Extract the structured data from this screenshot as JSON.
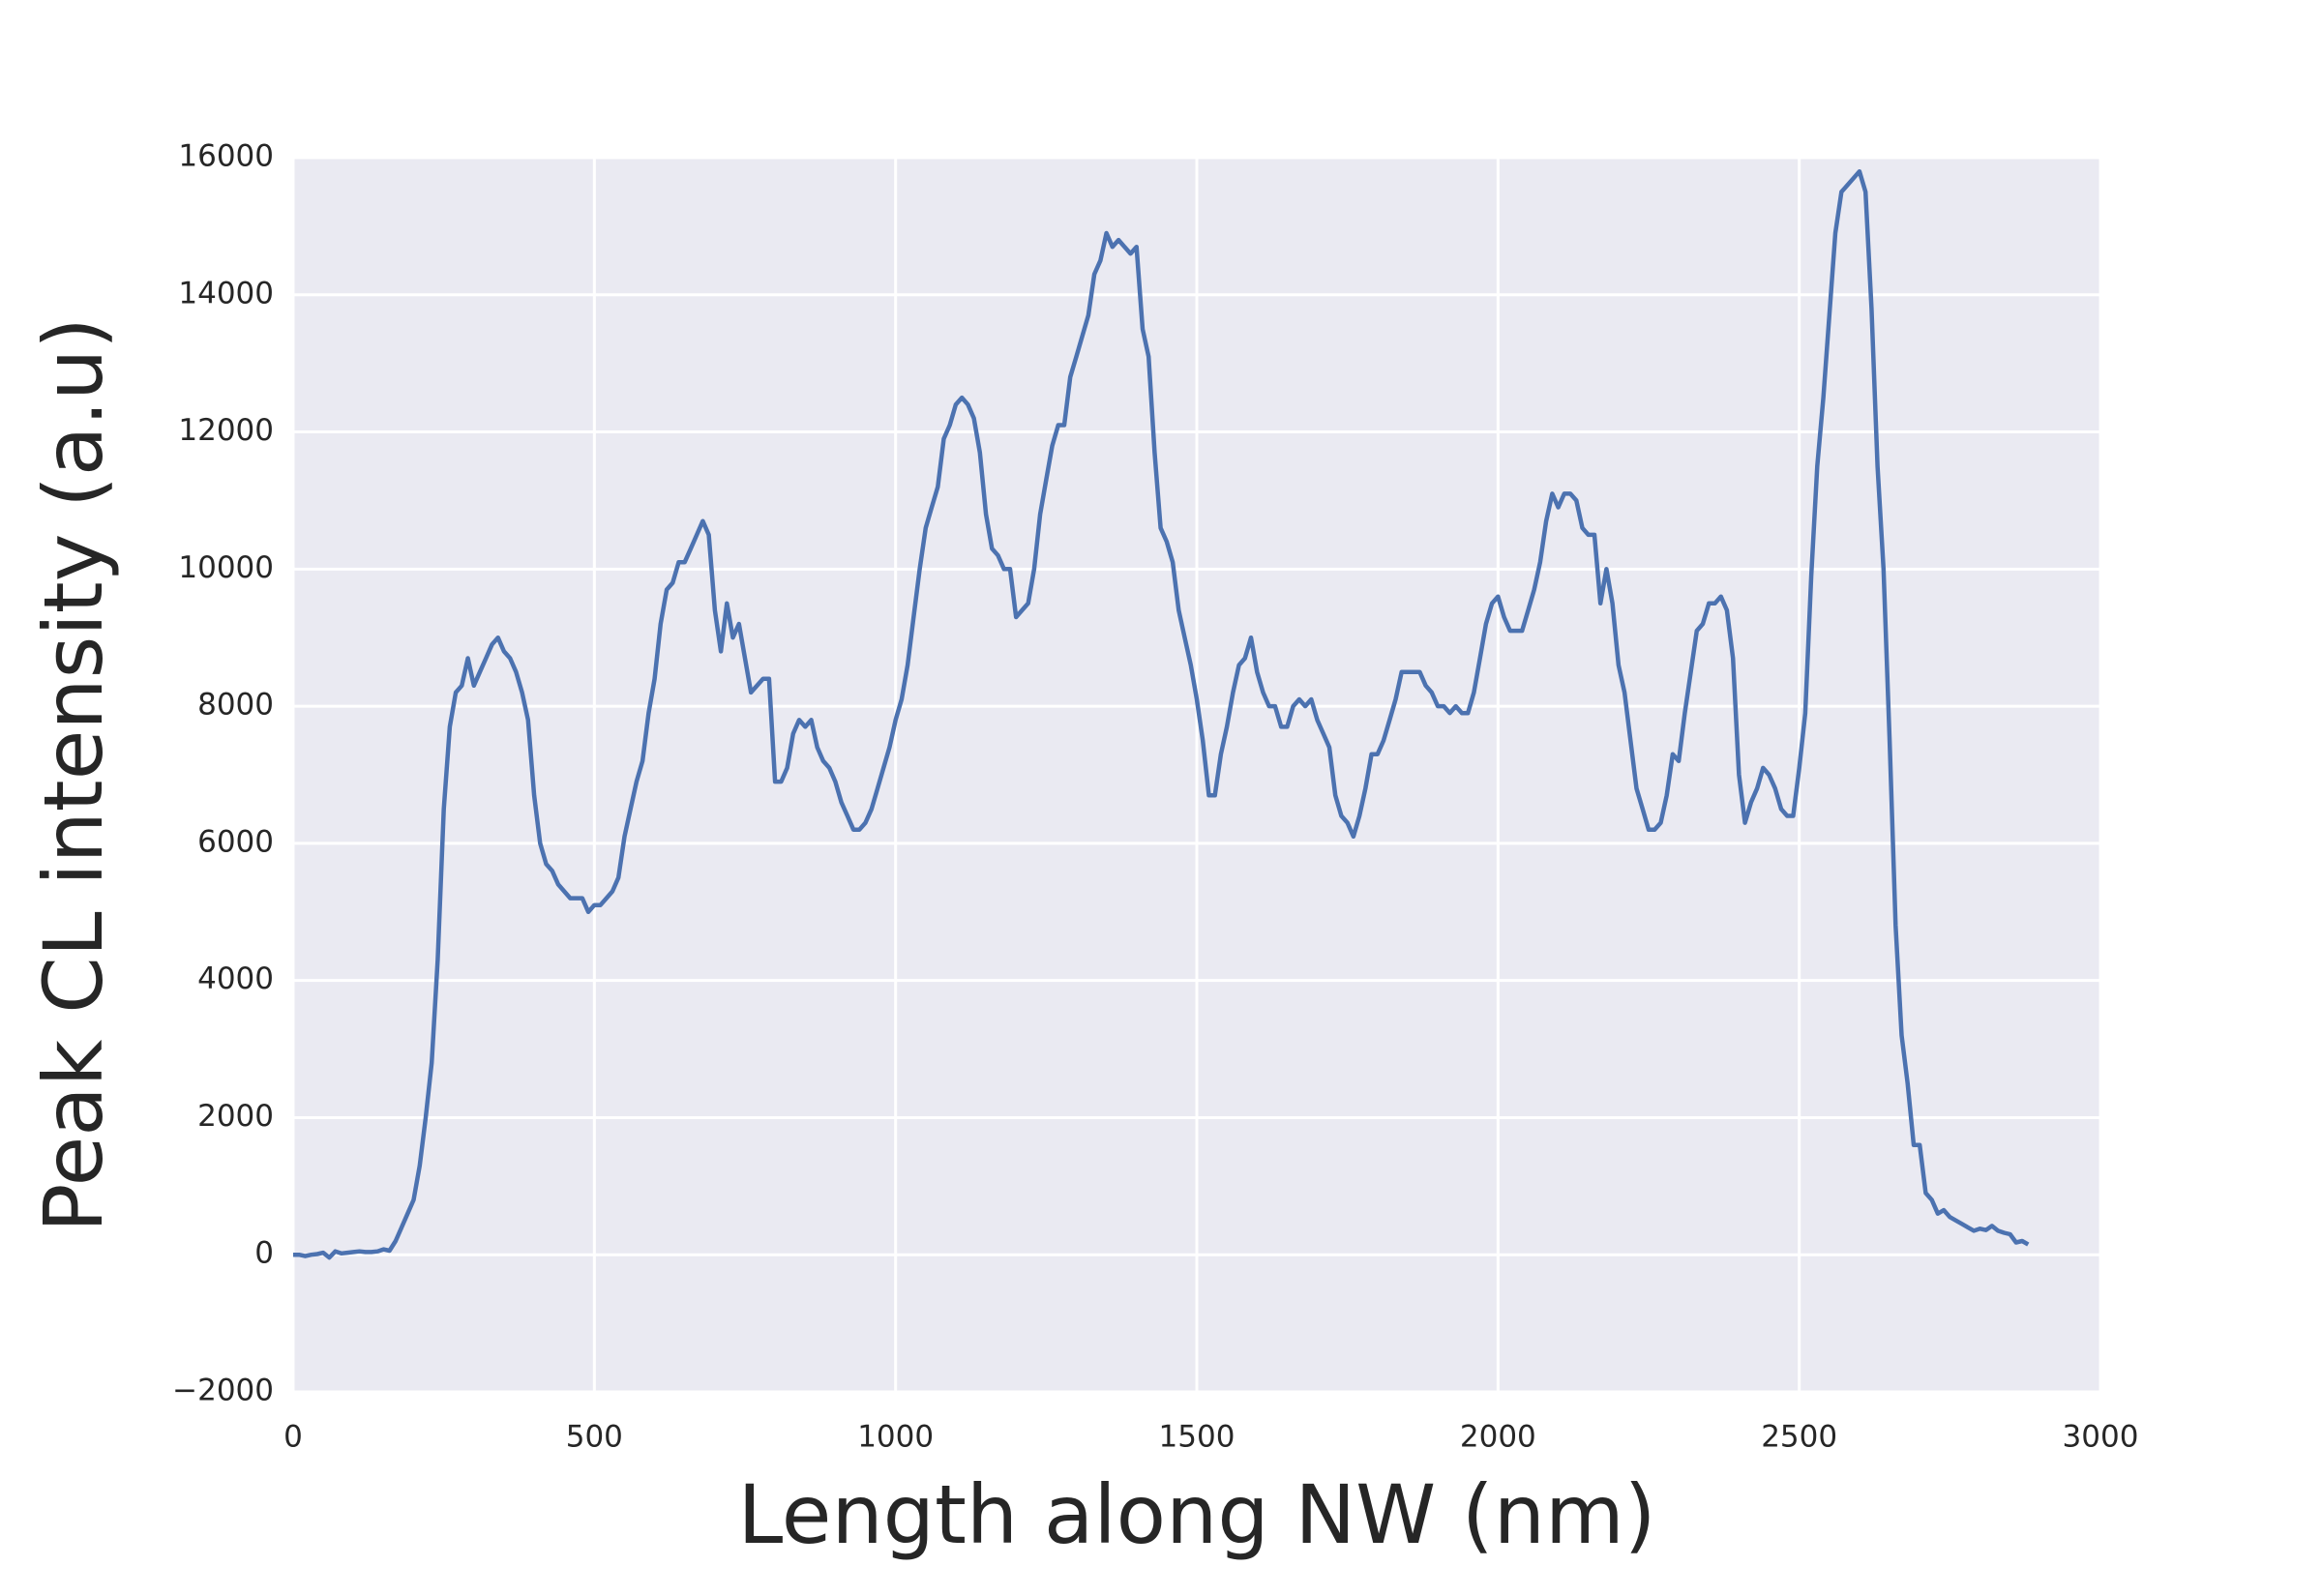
{
  "chart_data": {
    "type": "line",
    "xlabel": "Length along NW (nm)",
    "ylabel": "Peak CL intensity (a.u)",
    "x": [
      0,
      10,
      20,
      30,
      40,
      50,
      60,
      70,
      80,
      90,
      100,
      110,
      120,
      130,
      140,
      150,
      160,
      170,
      180,
      190,
      200,
      210,
      220,
      230,
      240,
      250,
      260,
      270,
      280,
      290,
      300,
      310,
      320,
      330,
      340,
      350,
      360,
      370,
      380,
      390,
      400,
      410,
      420,
      430,
      440,
      450,
      460,
      470,
      480,
      490,
      500,
      510,
      520,
      530,
      540,
      550,
      560,
      570,
      580,
      590,
      600,
      610,
      620,
      630,
      640,
      650,
      660,
      670,
      680,
      690,
      700,
      710,
      720,
      730,
      740,
      750,
      760,
      770,
      780,
      790,
      800,
      810,
      820,
      830,
      840,
      850,
      860,
      870,
      880,
      890,
      900,
      910,
      920,
      930,
      940,
      950,
      960,
      970,
      980,
      990,
      1000,
      1010,
      1020,
      1030,
      1040,
      1050,
      1060,
      1070,
      1080,
      1090,
      1100,
      1110,
      1120,
      1130,
      1140,
      1150,
      1160,
      1170,
      1180,
      1190,
      1200,
      1210,
      1220,
      1230,
      1240,
      1250,
      1260,
      1270,
      1280,
      1290,
      1300,
      1310,
      1320,
      1330,
      1340,
      1350,
      1360,
      1370,
      1380,
      1390,
      1400,
      1410,
      1420,
      1430,
      1440,
      1450,
      1460,
      1470,
      1480,
      1490,
      1500,
      1510,
      1520,
      1530,
      1540,
      1550,
      1560,
      1570,
      1580,
      1590,
      1600,
      1610,
      1620,
      1630,
      1640,
      1650,
      1660,
      1670,
      1680,
      1690,
      1700,
      1710,
      1720,
      1730,
      1740,
      1750,
      1760,
      1770,
      1780,
      1790,
      1800,
      1810,
      1820,
      1830,
      1840,
      1850,
      1860,
      1870,
      1880,
      1890,
      1900,
      1910,
      1920,
      1930,
      1940,
      1950,
      1960,
      1970,
      1980,
      1990,
      2000,
      2010,
      2020,
      2030,
      2040,
      2050,
      2060,
      2070,
      2080,
      2090,
      2100,
      2110,
      2120,
      2130,
      2140,
      2150,
      2160,
      2170,
      2180,
      2190,
      2200,
      2210,
      2220,
      2230,
      2240,
      2250,
      2260,
      2270,
      2280,
      2290,
      2300,
      2310,
      2320,
      2330,
      2340,
      2350,
      2360,
      2370,
      2380,
      2390,
      2400,
      2410,
      2420,
      2430,
      2440,
      2450,
      2460,
      2470,
      2480,
      2490,
      2500,
      2510,
      2520,
      2530,
      2540,
      2550,
      2560,
      2570,
      2580,
      2590,
      2600,
      2610,
      2620,
      2630,
      2640,
      2650,
      2660,
      2670,
      2680,
      2690,
      2700,
      2710,
      2720,
      2730,
      2740,
      2750,
      2760,
      2770,
      2780,
      2790,
      2800,
      2810,
      2820,
      2830,
      2840,
      2850,
      2860,
      2870,
      2880
    ],
    "series": [
      {
        "color": "#4c72b0",
        "values": [
          0,
          0,
          -20,
          0,
          10,
          30,
          -40,
          50,
          20,
          30,
          40,
          50,
          40,
          40,
          50,
          80,
          60,
          200,
          400,
          600,
          800,
          1300,
          2000,
          2800,
          4300,
          6500,
          7700,
          8200,
          8300,
          8700,
          8300,
          8500,
          8700,
          8900,
          9000,
          8800,
          8700,
          8500,
          8200,
          7800,
          6700,
          6000,
          5700,
          5600,
          5400,
          5300,
          5200,
          5200,
          5200,
          5000,
          5100,
          5100,
          5200,
          5300,
          5500,
          6100,
          6500,
          6900,
          7200,
          7900,
          8400,
          9200,
          9700,
          9800,
          10100,
          10100,
          10300,
          10500,
          10700,
          10500,
          9400,
          8800,
          9500,
          9000,
          9200,
          8700,
          8200,
          8300,
          8400,
          8400,
          6900,
          6900,
          7100,
          7600,
          7800,
          7700,
          7800,
          7400,
          7200,
          7100,
          6900,
          6600,
          6400,
          6200,
          6200,
          6300,
          6500,
          6800,
          7100,
          7400,
          7800,
          8100,
          8600,
          9300,
          10000,
          10600,
          10900,
          11200,
          11900,
          12100,
          12400,
          12500,
          12400,
          12200,
          11700,
          10800,
          10300,
          10200,
          10000,
          10000,
          9300,
          9400,
          9500,
          10000,
          10800,
          11300,
          11800,
          12100,
          12100,
          12800,
          13100,
          13400,
          13700,
          14300,
          14500,
          14900,
          14700,
          14800,
          14700,
          14600,
          14700,
          13500,
          13100,
          11700,
          10600,
          10400,
          10100,
          9400,
          9000,
          8600,
          8100,
          7500,
          6700,
          6700,
          7300,
          7700,
          8200,
          8600,
          8700,
          9000,
          8500,
          8200,
          8000,
          8000,
          7700,
          7700,
          8000,
          8100,
          8000,
          8100,
          7800,
          7600,
          7400,
          6700,
          6400,
          6300,
          6100,
          6400,
          6800,
          7300,
          7300,
          7500,
          7800,
          8100,
          8500,
          8500,
          8500,
          8500,
          8300,
          8200,
          8000,
          8000,
          7900,
          8000,
          7900,
          7900,
          8200,
          8700,
          9200,
          9500,
          9600,
          9300,
          9100,
          9100,
          9100,
          9400,
          9700,
          10100,
          10700,
          11100,
          10900,
          11100,
          11100,
          11000,
          10600,
          10500,
          10500,
          9500,
          10000,
          9500,
          8600,
          8200,
          7500,
          6800,
          6500,
          6200,
          6200,
          6300,
          6700,
          7300,
          7200,
          7900,
          8500,
          9100,
          9200,
          9500,
          9500,
          9600,
          9400,
          8700,
          7000,
          6300,
          6600,
          6800,
          7100,
          7000,
          6800,
          6500,
          6400,
          6400,
          7100,
          7900,
          9900,
          11500,
          12500,
          13700,
          14900,
          15500,
          15600,
          15700,
          15800,
          15500,
          13800,
          11500,
          10000,
          7500,
          4800,
          3200,
          2500,
          1600,
          1600,
          900,
          800,
          600,
          650,
          550,
          500,
          450,
          400,
          350,
          380,
          360,
          420,
          350,
          320,
          300,
          180,
          200,
          150
        ]
      }
    ],
    "xlim": [
      0,
      3000
    ],
    "xticks": [
      0,
      500,
      1000,
      1500,
      2000,
      2500,
      3000
    ],
    "ylim": [
      -2000,
      16000
    ],
    "yticks": [
      {
        "value": -2000,
        "label": "−2000"
      },
      0,
      2000,
      4000,
      6000,
      8000,
      10000,
      12000,
      14000,
      16000
    ],
    "grid": true
  }
}
